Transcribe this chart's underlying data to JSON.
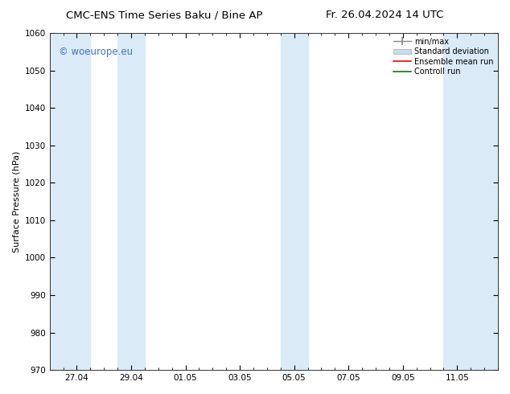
{
  "title_left": "CMC-ENS Time Series Baku / Bine AP",
  "title_right": "Fr. 26.04.2024 14 UTC",
  "ylabel": "Surface Pressure (hPa)",
  "ylim": [
    970,
    1060
  ],
  "yticks": [
    970,
    980,
    990,
    1000,
    1010,
    1020,
    1030,
    1040,
    1050,
    1060
  ],
  "xtick_labels": [
    "27.04",
    "29.04",
    "01.05",
    "03.05",
    "05.05",
    "07.05",
    "09.05",
    "11.05"
  ],
  "xtick_positions": [
    1,
    3,
    5,
    7,
    9,
    11,
    13,
    15
  ],
  "xlim": [
    0,
    16.5
  ],
  "shade_bands": [
    {
      "xmin": 0.0,
      "xmax": 1.5
    },
    {
      "xmin": 2.5,
      "xmax": 3.5
    },
    {
      "xmin": 8.5,
      "xmax": 9.5
    },
    {
      "xmin": 14.5,
      "xmax": 16.5
    }
  ],
  "shade_color": "#daeaf6",
  "watermark_text": "© woeurope.eu",
  "watermark_color": "#4472c4",
  "legend_labels": [
    "min/max",
    "Standard deviation",
    "Ensemble mean run",
    "Controll run"
  ],
  "legend_colors": [
    "#888888",
    "#c8dced",
    "#ff0000",
    "#008000"
  ],
  "background_color": "#ffffff",
  "title_fontsize": 9.5,
  "axis_fontsize": 8,
  "tick_fontsize": 7.5,
  "legend_fontsize": 7
}
